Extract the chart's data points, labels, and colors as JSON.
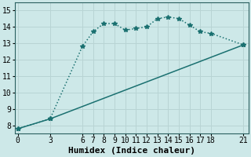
{
  "xlabel": "Humidex (Indice chaleur)",
  "background_color": "#cde8e8",
  "grid_color": "#b8d4d4",
  "line_color": "#1a7070",
  "xlim": [
    -0.3,
    21.5
  ],
  "ylim": [
    7.5,
    15.5
  ],
  "xticks": [
    0,
    3,
    6,
    7,
    8,
    9,
    10,
    11,
    12,
    13,
    14,
    15,
    16,
    17,
    18,
    21
  ],
  "yticks": [
    8,
    9,
    10,
    11,
    12,
    13,
    14,
    15
  ],
  "line1_x": [
    0,
    3,
    6,
    7,
    8,
    9,
    10,
    11,
    12,
    13,
    14,
    15,
    16,
    17,
    18,
    21
  ],
  "line1_y": [
    7.8,
    8.4,
    12.8,
    13.7,
    14.2,
    14.2,
    13.8,
    13.9,
    14.0,
    14.5,
    14.6,
    14.5,
    14.1,
    13.7,
    13.6,
    12.9
  ],
  "line2_x": [
    0,
    3,
    21
  ],
  "line2_y": [
    7.8,
    8.4,
    12.9
  ],
  "marker": "*",
  "marker_size": 4,
  "line_width": 1.1,
  "xlabel_fontsize": 8,
  "tick_fontsize": 7
}
